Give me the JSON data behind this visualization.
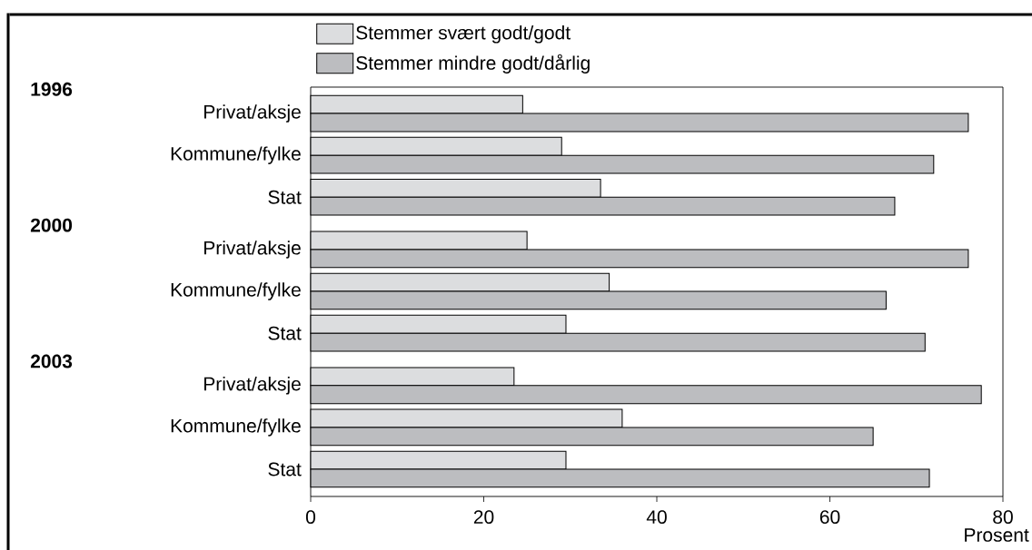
{
  "chart_data": {
    "type": "bar",
    "orientation": "horizontal",
    "categories": [
      "Privat/aksje",
      "Kommune/fylke",
      "Stat",
      "Privat/aksje",
      "Kommune/fylke",
      "Stat",
      "Privat/aksje",
      "Kommune/fylke",
      "Stat"
    ],
    "series": [
      {
        "name": "Stemmer svært godt/godt",
        "color": "#dcdddf",
        "values": [
          24.5,
          29,
          33.5,
          25,
          34.5,
          29.5,
          23.5,
          36,
          29.5
        ]
      },
      {
        "name": "Stemmer mindre godt/dårlig",
        "color": "#bcbdc0",
        "values": [
          76,
          72,
          67.5,
          76,
          66.5,
          71,
          77.5,
          65,
          71.5
        ]
      }
    ],
    "xlabel": "Prosent",
    "xlim": [
      0,
      80
    ],
    "xticks": [
      0,
      20,
      40,
      60,
      80
    ],
    "annotations": [
      "1996",
      "2000",
      "2003"
    ],
    "legend": "top left"
  }
}
